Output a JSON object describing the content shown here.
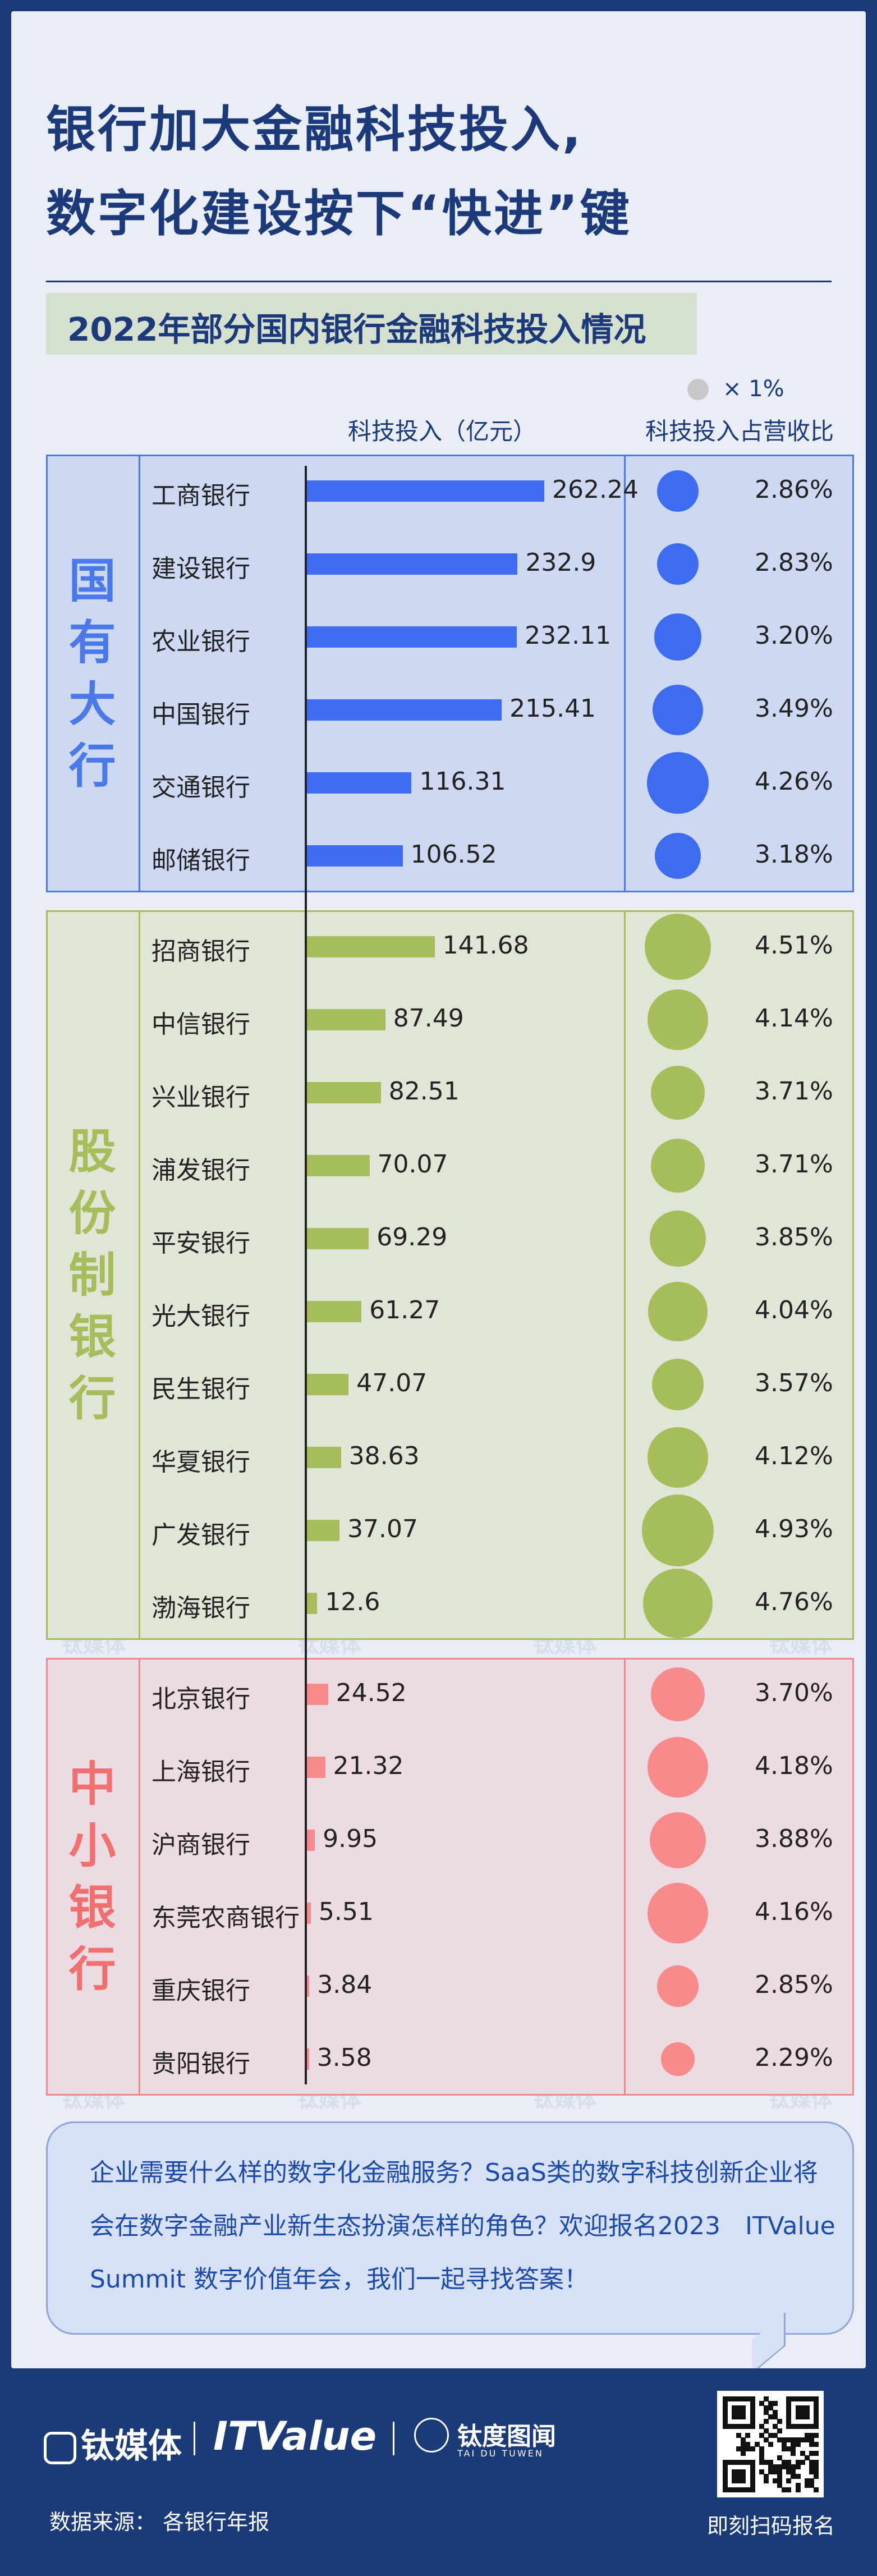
{
  "title": {
    "line1": "银行加大金融科技投入,",
    "line2": "数字化建设按下“快进”键"
  },
  "chart_data": {
    "type": "bar",
    "title": "2022年部分国内银行金融科技投入情况",
    "legend_text": "× 1%",
    "column_headers": {
      "bar": "科技投入（亿元）",
      "ratio": "科技投入占营收比"
    },
    "groups": [
      {
        "label": "国有大行",
        "color": "#3d6cf0",
        "box_fill": "#cdd8f3",
        "box_border": "#4c79ea",
        "label_color": "#4c79ea",
        "banks": [
          {
            "name": "工商银行",
            "value": 262.24,
            "value_label": "262.24",
            "ratio": 2.86,
            "ratio_label": "2.86%"
          },
          {
            "name": "建设银行",
            "value": 232.9,
            "value_label": "232.9",
            "ratio": 2.83,
            "ratio_label": "2.83%"
          },
          {
            "name": "农业银行",
            "value": 232.11,
            "value_label": "232.11",
            "ratio": 3.2,
            "ratio_label": "3.20%"
          },
          {
            "name": "中国银行",
            "value": 215.41,
            "value_label": "215.41",
            "ratio": 3.49,
            "ratio_label": "3.49%"
          },
          {
            "name": "交通银行",
            "value": 116.31,
            "value_label": "116.31",
            "ratio": 4.26,
            "ratio_label": "4.26%"
          },
          {
            "name": "邮储银行",
            "value": 106.52,
            "value_label": "106.52",
            "ratio": 3.18,
            "ratio_label": "3.18%"
          }
        ]
      },
      {
        "label": "股份制银行",
        "color": "#a6bd5b",
        "box_fill": "#dfe6d6",
        "box_border": "#a6bd5b",
        "label_color": "#a6bd5b",
        "banks": [
          {
            "name": "招商银行",
            "value": 141.68,
            "value_label": "141.68",
            "ratio": 4.51,
            "ratio_label": "4.51%"
          },
          {
            "name": "中信银行",
            "value": 87.49,
            "value_label": "87.49",
            "ratio": 4.14,
            "ratio_label": "4.14%"
          },
          {
            "name": "兴业银行",
            "value": 82.51,
            "value_label": "82.51",
            "ratio": 3.71,
            "ratio_label": "3.71%"
          },
          {
            "name": "浦发银行",
            "value": 70.07,
            "value_label": "70.07",
            "ratio": 3.71,
            "ratio_label": "3.71%"
          },
          {
            "name": "平安银行",
            "value": 69.29,
            "value_label": "69.29",
            "ratio": 3.85,
            "ratio_label": "3.85%"
          },
          {
            "name": "光大银行",
            "value": 61.27,
            "value_label": "61.27",
            "ratio": 4.04,
            "ratio_label": "4.04%"
          },
          {
            "name": "民生银行",
            "value": 47.07,
            "value_label": "47.07",
            "ratio": 3.57,
            "ratio_label": "3.57%"
          },
          {
            "name": "华夏银行",
            "value": 38.63,
            "value_label": "38.63",
            "ratio": 4.12,
            "ratio_label": "4.12%"
          },
          {
            "name": "广发银行",
            "value": 37.07,
            "value_label": "37.07",
            "ratio": 4.93,
            "ratio_label": "4.93%"
          },
          {
            "name": "渤海银行",
            "value": 12.6,
            "value_label": "12.6",
            "ratio": 4.76,
            "ratio_label": "4.76%"
          }
        ]
      },
      {
        "label": "中小银行",
        "color": "#f78a8a",
        "box_fill": "#ecdbe2",
        "box_border": "#f08a8a",
        "label_color": "#f06f6f",
        "banks": [
          {
            "name": "北京银行",
            "value": 24.52,
            "value_label": "24.52",
            "ratio": 3.7,
            "ratio_label": "3.70%"
          },
          {
            "name": "上海银行",
            "value": 21.32,
            "value_label": "21.32",
            "ratio": 4.18,
            "ratio_label": "4.18%"
          },
          {
            "name": "沪商银行",
            "value": 9.95,
            "value_label": "9.95",
            "ratio": 3.88,
            "ratio_label": "3.88%"
          },
          {
            "name": "东莞农商银行",
            "value": 5.51,
            "value_label": "5.51",
            "ratio": 4.16,
            "ratio_label": "4.16%"
          },
          {
            "name": "重庆银行",
            "value": 3.84,
            "value_label": "3.84",
            "ratio": 2.85,
            "ratio_label": "2.85%"
          },
          {
            "name": "贵阳银行",
            "value": 3.58,
            "value_label": "3.58",
            "ratio": 2.29,
            "ratio_label": "2.29%"
          }
        ]
      }
    ]
  },
  "watermark": "钛媒体",
  "cta": {
    "line1": "企业需要什么样的数字化金融服务？SaaS类的数字科技创新企业将",
    "line2": "会在数字金融产业新生态扮演怎样的角色？欢迎报名2023　ITValue",
    "line3": "Summit 数字价值年会，我们一起寻找答案！"
  },
  "footer": {
    "logo1": "钛媒体",
    "logo2": "ITValue",
    "logo3": "钛度图闻",
    "logo3_sub": "TAI DU TUWEN",
    "source": "数据来源：  各银行年报",
    "scan_label": "即刻扫码报名"
  },
  "colors": {
    "background": "#1b3a78",
    "card": "#e9edf6",
    "title": "#1c3a7a",
    "accent_blue": "#3d6cf0",
    "accent_green": "#a6bd5b",
    "accent_pink": "#f78a8a"
  }
}
